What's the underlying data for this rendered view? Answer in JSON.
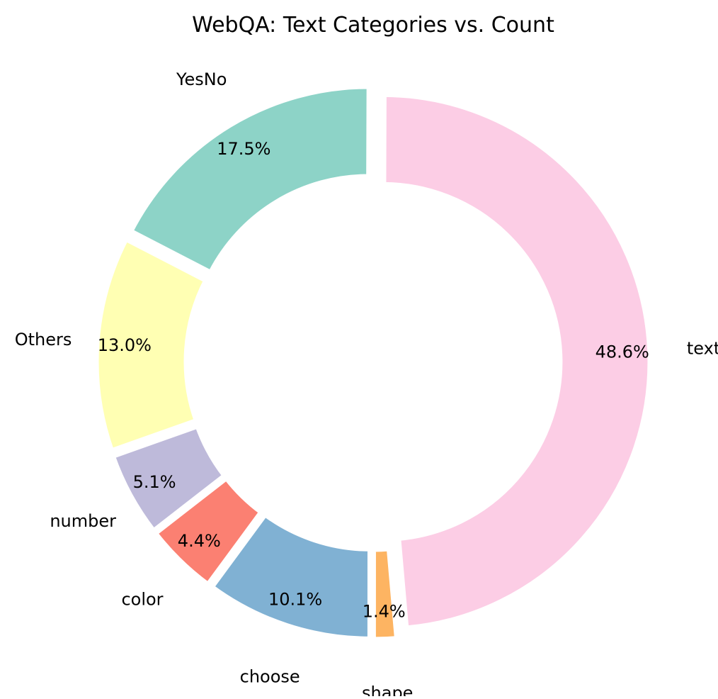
{
  "chart_data": {
    "type": "pie",
    "title": "WebQA: Text Categories vs. Count",
    "donut": true,
    "categories": [
      "text",
      "YesNo",
      "Others",
      "number",
      "color",
      "choose",
      "shape"
    ],
    "values": [
      48.6,
      17.5,
      13.0,
      5.1,
      4.4,
      10.1,
      1.4
    ],
    "percent_labels": [
      "48.6%",
      "17.5%",
      "13.0%",
      "5.1%",
      "4.4%",
      "10.1%",
      "1.4%"
    ],
    "colors": [
      "#fccde5",
      "#8dd3c7",
      "#ffffb3",
      "#bebada",
      "#fb8072",
      "#80b1d3",
      "#fdb462"
    ],
    "start_angle_deg": -85,
    "direction": "counterclockwise",
    "legend": "none"
  }
}
